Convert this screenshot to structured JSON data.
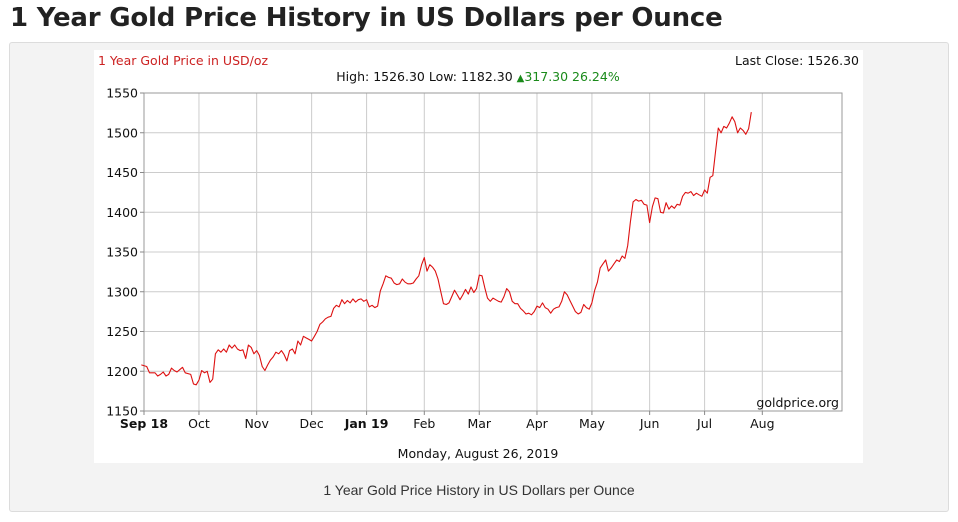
{
  "page": {
    "title": "1 Year Gold Price History in US Dollars per Ounce",
    "caption": "1 Year Gold Price History in US Dollars per Ounce"
  },
  "chart_header": {
    "series_label": "1 Year Gold Price in USD/oz",
    "last_close": "Last Close: 1526.30",
    "stats_prefix": "High: 1526.30 Low: 1182.30 ",
    "change_arrow": "▲",
    "change_text": "317.30 26.24%",
    "watermark": "goldprice.org",
    "date_label": "Monday, August 26, 2019"
  },
  "colors": {
    "line": "#dd1111",
    "series_label": "#cc2222",
    "change_positive": "#1a8a1a",
    "grid": "#cccccc"
  },
  "chart_data": {
    "type": "line",
    "title": "",
    "xlabel": "",
    "ylabel": "",
    "ylim": [
      1150,
      1550
    ],
    "yticks": [
      1150,
      1200,
      1250,
      1300,
      1350,
      1400,
      1450,
      1500,
      1550
    ],
    "grid": true,
    "x_unit": "trading day index",
    "xlim": [
      0,
      254
    ],
    "xticks": [
      {
        "x": 0,
        "label": "Sep 18",
        "bold": true
      },
      {
        "x": 20,
        "label": "Oct",
        "bold": false
      },
      {
        "x": 41,
        "label": "Nov",
        "bold": false
      },
      {
        "x": 61,
        "label": "Dec",
        "bold": false
      },
      {
        "x": 81,
        "label": "Jan 19",
        "bold": true
      },
      {
        "x": 102,
        "label": "Feb",
        "bold": false
      },
      {
        "x": 122,
        "label": "Mar",
        "bold": false
      },
      {
        "x": 143,
        "label": "Apr",
        "bold": false
      },
      {
        "x": 163,
        "label": "May",
        "bold": false
      },
      {
        "x": 184,
        "label": "Jun",
        "bold": false
      },
      {
        "x": 204,
        "label": "Jul",
        "bold": false
      },
      {
        "x": 225,
        "label": "Aug",
        "bold": false
      }
    ],
    "series": [
      {
        "name": "1 Year Gold Price in USD/oz",
        "points": [
          [
            -1,
            1208
          ],
          [
            1,
            1206
          ],
          [
            2,
            1198
          ],
          [
            4,
            1198
          ],
          [
            5,
            1194
          ],
          [
            6,
            1196
          ],
          [
            7,
            1199
          ],
          [
            8,
            1194
          ],
          [
            9,
            1196
          ],
          [
            10,
            1204
          ],
          [
            11,
            1201
          ],
          [
            12,
            1199
          ],
          [
            13,
            1202
          ],
          [
            14,
            1205
          ],
          [
            15,
            1198
          ],
          [
            17,
            1196
          ],
          [
            18,
            1184
          ],
          [
            19,
            1183
          ],
          [
            20,
            1189
          ],
          [
            21,
            1201
          ],
          [
            22,
            1198
          ],
          [
            23,
            1200
          ],
          [
            24,
            1186
          ],
          [
            25,
            1190
          ],
          [
            26,
            1222
          ],
          [
            27,
            1227
          ],
          [
            28,
            1224
          ],
          [
            29,
            1228
          ],
          [
            30,
            1224
          ],
          [
            31,
            1233
          ],
          [
            32,
            1229
          ],
          [
            33,
            1233
          ],
          [
            34,
            1228
          ],
          [
            35,
            1226
          ],
          [
            36,
            1227
          ],
          [
            37,
            1216
          ],
          [
            38,
            1233
          ],
          [
            39,
            1230
          ],
          [
            40,
            1222
          ],
          [
            41,
            1226
          ],
          [
            42,
            1220
          ],
          [
            43,
            1206
          ],
          [
            44,
            1201
          ],
          [
            45,
            1208
          ],
          [
            46,
            1214
          ],
          [
            47,
            1218
          ],
          [
            48,
            1224
          ],
          [
            49,
            1222
          ],
          [
            50,
            1226
          ],
          [
            51,
            1221
          ],
          [
            52,
            1213
          ],
          [
            53,
            1226
          ],
          [
            54,
            1228
          ],
          [
            55,
            1222
          ],
          [
            56,
            1238
          ],
          [
            57,
            1233
          ],
          [
            58,
            1244
          ],
          [
            59,
            1242
          ],
          [
            60,
            1240
          ],
          [
            61,
            1238
          ],
          [
            62,
            1244
          ],
          [
            63,
            1250
          ],
          [
            64,
            1259
          ],
          [
            65,
            1262
          ],
          [
            66,
            1266
          ],
          [
            67,
            1268
          ],
          [
            68,
            1269
          ],
          [
            69,
            1279
          ],
          [
            70,
            1283
          ],
          [
            71,
            1281
          ],
          [
            72,
            1290
          ],
          [
            73,
            1285
          ],
          [
            74,
            1289
          ],
          [
            75,
            1286
          ],
          [
            76,
            1291
          ],
          [
            77,
            1287
          ],
          [
            78,
            1290
          ],
          [
            79,
            1291
          ],
          [
            80,
            1288
          ],
          [
            81,
            1290
          ],
          [
            82,
            1281
          ],
          [
            83,
            1283
          ],
          [
            84,
            1280
          ],
          [
            85,
            1282
          ],
          [
            86,
            1301
          ],
          [
            87,
            1310
          ],
          [
            88,
            1320
          ],
          [
            89,
            1318
          ],
          [
            90,
            1317
          ],
          [
            91,
            1311
          ],
          [
            92,
            1309
          ],
          [
            93,
            1310
          ],
          [
            94,
            1316
          ],
          [
            95,
            1312
          ],
          [
            96,
            1310
          ],
          [
            97,
            1310
          ],
          [
            98,
            1311
          ],
          [
            99,
            1316
          ],
          [
            100,
            1320
          ],
          [
            101,
            1334
          ],
          [
            102,
            1343
          ],
          [
            103,
            1326
          ],
          [
            104,
            1334
          ],
          [
            105,
            1331
          ],
          [
            106,
            1326
          ],
          [
            107,
            1316
          ],
          [
            108,
            1300
          ],
          [
            109,
            1285
          ],
          [
            110,
            1284
          ],
          [
            111,
            1286
          ],
          [
            112,
            1294
          ],
          [
            113,
            1302
          ],
          [
            114,
            1296
          ],
          [
            115,
            1290
          ],
          [
            116,
            1296
          ],
          [
            117,
            1303
          ],
          [
            118,
            1297
          ],
          [
            119,
            1306
          ],
          [
            120,
            1299
          ],
          [
            121,
            1304
          ],
          [
            122,
            1321
          ],
          [
            123,
            1320
          ],
          [
            124,
            1305
          ],
          [
            125,
            1292
          ],
          [
            126,
            1288
          ],
          [
            127,
            1292
          ],
          [
            128,
            1290
          ],
          [
            129,
            1288
          ],
          [
            130,
            1287
          ],
          [
            131,
            1294
          ],
          [
            132,
            1304
          ],
          [
            133,
            1300
          ],
          [
            134,
            1288
          ],
          [
            135,
            1285
          ],
          [
            136,
            1285
          ],
          [
            137,
            1279
          ],
          [
            138,
            1276
          ],
          [
            139,
            1272
          ],
          [
            140,
            1273
          ],
          [
            141,
            1271
          ],
          [
            142,
            1275
          ],
          [
            143,
            1282
          ],
          [
            144,
            1280
          ],
          [
            145,
            1286
          ],
          [
            146,
            1280
          ],
          [
            147,
            1278
          ],
          [
            148,
            1273
          ],
          [
            149,
            1278
          ],
          [
            150,
            1280
          ],
          [
            151,
            1281
          ],
          [
            152,
            1288
          ],
          [
            153,
            1300
          ],
          [
            154,
            1296
          ],
          [
            155,
            1289
          ],
          [
            156,
            1282
          ],
          [
            157,
            1275
          ],
          [
            158,
            1272
          ],
          [
            159,
            1274
          ],
          [
            160,
            1284
          ],
          [
            161,
            1280
          ],
          [
            162,
            1278
          ],
          [
            163,
            1286
          ],
          [
            164,
            1302
          ],
          [
            165,
            1312
          ],
          [
            166,
            1330
          ],
          [
            167,
            1335
          ],
          [
            168,
            1340
          ],
          [
            169,
            1326
          ],
          [
            170,
            1330
          ],
          [
            171,
            1335
          ],
          [
            172,
            1340
          ],
          [
            173,
            1338
          ],
          [
            174,
            1345
          ],
          [
            175,
            1342
          ],
          [
            176,
            1358
          ],
          [
            177,
            1388
          ],
          [
            178,
            1413
          ],
          [
            179,
            1416
          ],
          [
            180,
            1414
          ],
          [
            181,
            1415
          ],
          [
            182,
            1410
          ],
          [
            183,
            1409
          ],
          [
            184,
            1387
          ],
          [
            185,
            1407
          ],
          [
            186,
            1418
          ],
          [
            187,
            1417
          ],
          [
            188,
            1400
          ],
          [
            189,
            1399
          ],
          [
            190,
            1412
          ],
          [
            191,
            1404
          ],
          [
            192,
            1408
          ],
          [
            193,
            1405
          ],
          [
            194,
            1410
          ],
          [
            195,
            1409
          ],
          [
            196,
            1420
          ],
          [
            197,
            1425
          ],
          [
            198,
            1424
          ],
          [
            199,
            1426
          ],
          [
            200,
            1421
          ],
          [
            201,
            1424
          ],
          [
            202,
            1422
          ],
          [
            203,
            1420
          ],
          [
            204,
            1428
          ],
          [
            205,
            1424
          ],
          [
            206,
            1444
          ],
          [
            207,
            1446
          ],
          [
            208,
            1477
          ],
          [
            209,
            1506
          ],
          [
            210,
            1500
          ],
          [
            211,
            1508
          ],
          [
            212,
            1506
          ],
          [
            213,
            1512
          ],
          [
            214,
            1520
          ],
          [
            215,
            1514
          ],
          [
            216,
            1500
          ],
          [
            217,
            1506
          ],
          [
            218,
            1503
          ],
          [
            219,
            1498
          ],
          [
            220,
            1505
          ],
          [
            221,
            1526
          ]
        ]
      }
    ]
  }
}
